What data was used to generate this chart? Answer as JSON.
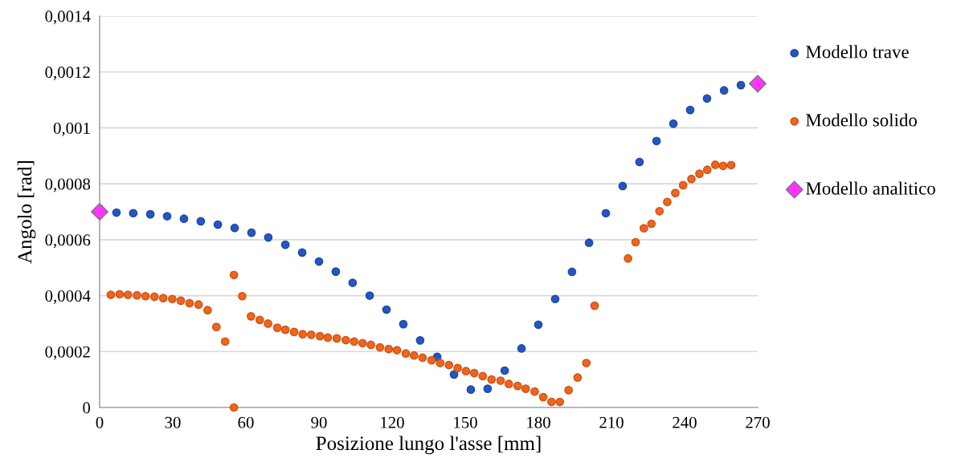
{
  "chart_data": {
    "type": "scatter",
    "xlabel": "Posizione lungo l'asse [mm]",
    "ylabel": "Angolo [rad]",
    "xlim": [
      0,
      270
    ],
    "xticks": [
      0,
      30,
      60,
      90,
      120,
      150,
      180,
      210,
      240,
      270
    ],
    "ylim": [
      0,
      0.0014
    ],
    "yticks": [
      0,
      {
        "value": 0.0002,
        "label": "0,0002"
      },
      {
        "value": 0.0004,
        "label": "0,0004"
      },
      {
        "value": 0.0006,
        "label": "0,0006"
      },
      {
        "value": 0.0008,
        "label": "0,0008"
      },
      {
        "value": 0.001,
        "label": "0,001"
      },
      {
        "value": 0.0012,
        "label": "0,0012"
      },
      {
        "value": 0.0014,
        "label": "0,0014"
      }
    ],
    "grid": "y",
    "legend": "right",
    "series": [
      {
        "name": "Modello trave",
        "color": "#2456c4",
        "marker": "circle",
        "x": [
          6.9,
          13.8,
          20.8,
          27.7,
          34.6,
          41.5,
          48.5,
          55.4,
          62.3,
          69.2,
          76.2,
          83.1,
          90.0,
          96.9,
          103.8,
          110.8,
          117.7,
          124.6,
          131.5,
          138.5,
          145.4,
          152.3,
          159.2,
          166.2,
          173.1,
          180.0,
          186.9,
          193.8,
          200.8,
          207.7,
          214.6,
          221.5,
          228.5,
          235.4,
          242.3,
          249.2,
          256.2,
          263.1
        ],
        "values": [
          0.000697,
          0.000695,
          0.000691,
          0.000684,
          0.000675,
          0.000666,
          0.000654,
          0.000642,
          0.000625,
          0.000608,
          0.000582,
          0.000554,
          0.000522,
          0.000486,
          0.000446,
          0.0004,
          0.00035,
          0.000298,
          0.00024,
          0.000181,
          0.000118,
          6.4e-05,
          6.7e-05,
          0.000132,
          0.000211,
          0.000296,
          0.000388,
          0.000485,
          0.000589,
          0.000695,
          0.000792,
          0.000878,
          0.000953,
          0.001015,
          0.001064,
          0.001105,
          0.001134,
          0.001153
        ]
      },
      {
        "name": "Modello solido",
        "color": "#f0641c",
        "marker": "circle",
        "x": [
          4.6,
          8.2,
          11.6,
          15.3,
          18.8,
          22.5,
          26.1,
          29.8,
          33.3,
          36.9,
          40.6,
          44.3,
          47.9,
          51.5,
          55.1,
          55.1,
          58.5,
          62.1,
          65.7,
          69.1,
          72.9,
          76.2,
          79.8,
          83.3,
          86.8,
          90.4,
          93.6,
          97.3,
          101.0,
          104.4,
          107.9,
          111.3,
          115.0,
          118.6,
          122.0,
          125.6,
          129.0,
          132.5,
          136.2,
          139.7,
          143.3,
          146.9,
          150.3,
          153.7,
          157.2,
          160.8,
          164.5,
          167.9,
          171.5,
          174.8,
          178.5,
          182.0,
          185.4,
          188.8,
          192.4,
          196.1,
          199.7,
          203.1,
          216.8,
          219.9,
          223.3,
          226.4,
          229.7,
          232.9,
          236.2,
          239.4,
          242.8,
          246.1,
          249.3,
          252.6,
          255.8,
          259.1
        ],
        "values": [
          0.000403,
          0.000405,
          0.000403,
          0.000401,
          0.000398,
          0.000396,
          0.000391,
          0.000388,
          0.000382,
          0.000373,
          0.000368,
          0.000348,
          0.000288,
          0.000236,
          0.000474,
          0,
          0.000398,
          0.000326,
          0.000313,
          0.0003,
          0.000285,
          0.000278,
          0.00027,
          0.000262,
          0.00026,
          0.000255,
          0.00025,
          0.000247,
          0.000241,
          0.000236,
          0.00023,
          0.000224,
          0.000215,
          0.000209,
          0.000205,
          0.000193,
          0.000186,
          0.000178,
          0.000169,
          0.000159,
          0.000152,
          0.000141,
          0.00013,
          0.000123,
          0.000112,
          0.0001,
          9.6e-05,
          8.4e-05,
          7.7e-05,
          6.7e-05,
          5.7e-05,
          3.7e-05,
          2e-05,
          2e-05,
          6.2e-05,
          0.000107,
          0.000159,
          0.000364,
          0.000533,
          0.000591,
          0.000641,
          0.000657,
          0.000702,
          0.000735,
          0.000767,
          0.000795,
          0.000817,
          0.000836,
          0.00085,
          0.000868,
          0.000864,
          0.000867
        ]
      },
      {
        "name": "Modello analitico",
        "color": "#ff33ff",
        "marker": "diamond",
        "x": [
          0,
          270
        ],
        "values": [
          0.0007,
          0.001158
        ]
      }
    ]
  }
}
